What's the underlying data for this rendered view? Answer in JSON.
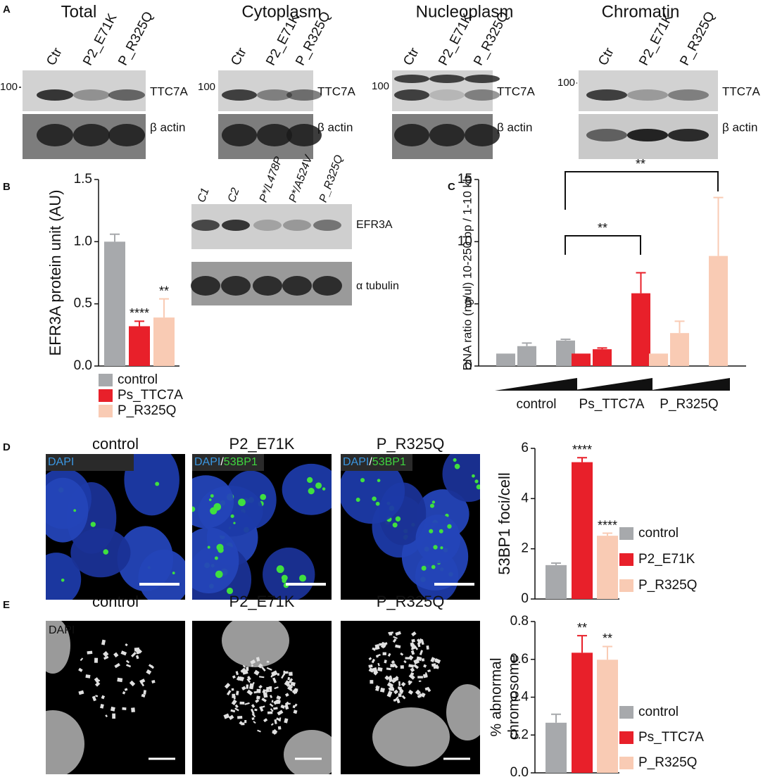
{
  "panel_labels": [
    "A",
    "B",
    "C",
    "D",
    "E"
  ],
  "panel_a": {
    "blots": [
      {
        "title": "Total",
        "lanes": [
          "Ctr",
          "P2_E71K",
          "P_R325Q"
        ],
        "marker": "100",
        "labels": [
          "TTC7A",
          "β actin"
        ]
      },
      {
        "title": "Cytoplasm",
        "lanes": [
          "Ctr",
          "P2_E71K",
          "P_R325Q"
        ],
        "marker": "100",
        "labels": [
          "TTC7A",
          "β actin"
        ]
      },
      {
        "title": "Nucleoplasm",
        "lanes": [
          "Ctr",
          "P2_E71K",
          "P_R325Q"
        ],
        "marker": "100",
        "labels": [
          "TTC7A",
          "β actin"
        ]
      },
      {
        "title": "Chromatin",
        "lanes": [
          "Ctr",
          "P2_E71K",
          "P_R325Q"
        ],
        "marker": "100",
        "labels": [
          "TTC7A",
          "β actin"
        ]
      }
    ]
  },
  "panel_b_blot": {
    "lanes": [
      "C1",
      "C2",
      "P*/L478P",
      "P*/A524V",
      "P_R325Q"
    ],
    "labels": [
      "EFR3A",
      "α tubulin"
    ]
  },
  "panel_d": {
    "titles": [
      "control",
      "P2_E71K",
      "P_R325Q"
    ],
    "stain": [
      "DAPI",
      "/",
      "53BP1"
    ]
  },
  "panel_e": {
    "titles": [
      "control",
      "P2_E71K",
      "P_R325Q"
    ],
    "stain": "DAPI"
  },
  "chart_data": [
    {
      "type": "bar",
      "ylabel": "EFR3A protein unit (AU)",
      "categories": [
        "control",
        "Ps_TTC7A",
        "P_R325Q"
      ],
      "colors": [
        "#a7a9ac",
        "#e8202a",
        "#f9cbb4"
      ],
      "values": [
        1.0,
        0.32,
        0.39
      ],
      "errors": [
        0.06,
        0.04,
        0.15
      ],
      "significance": [
        null,
        "****",
        "**"
      ],
      "ylim": [
        0,
        1.5
      ],
      "yticks": [
        {
          "value": 0,
          "label": "0.0"
        },
        0.5,
        {
          "value": 1,
          "label": "1.0"
        },
        1.5
      ],
      "legend": true
    },
    {
      "type": "grouped_bar",
      "ylabel": "DNA ratio (ng/ul) 10-250 bp / 1-10 kb",
      "groups": [
        {
          "name": "control",
          "color": "#a7a9ac",
          "values": [
            1.0,
            1.6,
            2.05
          ],
          "errors": [
            null,
            0.25,
            0.1
          ]
        },
        {
          "name": "Ps_TTC7A",
          "color": "#e8202a",
          "values": [
            1.0,
            1.35,
            5.85
          ],
          "errors": [
            null,
            0.1,
            1.65
          ]
        },
        {
          "name": "P_R325Q",
          "color": "#f9cbb4",
          "values": [
            1.0,
            2.65,
            8.85
          ],
          "errors": [
            null,
            0.95,
            4.7
          ]
        }
      ],
      "annotations": [
        "**",
        "**"
      ],
      "ylim": [
        0,
        15
      ],
      "yticks": [
        0,
        5,
        10,
        15
      ]
    },
    {
      "type": "bar",
      "ylabel": "53BP1 foci/cell",
      "categories": [
        "control",
        "P2_E71K",
        "P_R325Q"
      ],
      "colors": [
        "#a7a9ac",
        "#e8202a",
        "#f9cbb4"
      ],
      "values": [
        1.35,
        5.45,
        2.52
      ],
      "errors": [
        0.08,
        0.18,
        0.1
      ],
      "significance": [
        null,
        "****",
        "****"
      ],
      "ylim": [
        0,
        6
      ],
      "yticks": [
        0,
        2,
        4,
        6
      ],
      "legend": true
    },
    {
      "type": "bar",
      "ylabel": [
        "% abnormal",
        "chromosome"
      ],
      "categories": [
        "control",
        "Ps_TTC7A",
        "P_R325Q"
      ],
      "colors": [
        "#a7a9ac",
        "#e8202a",
        "#f9cbb4"
      ],
      "values": [
        0.265,
        0.635,
        0.598
      ],
      "errors": [
        0.045,
        0.09,
        0.07
      ],
      "significance": [
        null,
        "**",
        "**"
      ],
      "ylim": [
        0,
        0.8
      ],
      "yticks": [
        {
          "value": 0,
          "label": "0.0"
        },
        0.2,
        0.4,
        0.6,
        0.8
      ],
      "legend": true
    }
  ]
}
